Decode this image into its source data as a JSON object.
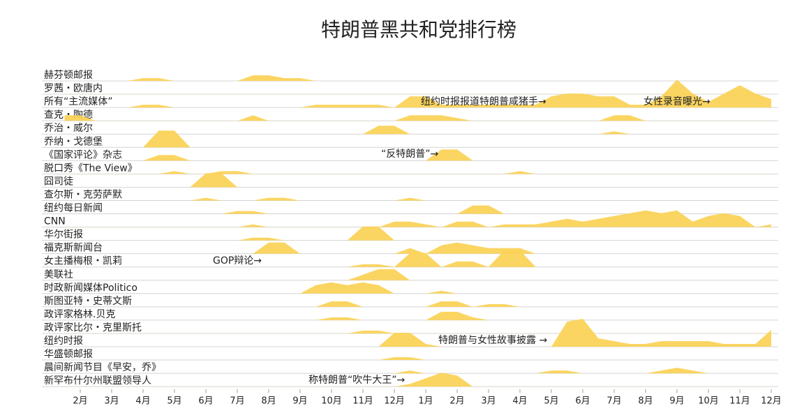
{
  "chart_data": {
    "type": "ridgeline",
    "title": "特朗普黑共和党排行榜",
    "color": "#fbd155",
    "grid": true,
    "xlim": [
      0.5,
      23.5
    ],
    "xticks": [
      {
        "value": 1,
        "label": "2月"
      },
      {
        "value": 2,
        "label": "3月"
      },
      {
        "value": 3,
        "label": "4月"
      },
      {
        "value": 4,
        "label": "5月"
      },
      {
        "value": 5,
        "label": "6月"
      },
      {
        "value": 6,
        "label": "7月"
      },
      {
        "value": 7,
        "label": "8月"
      },
      {
        "value": 8,
        "label": "9月"
      },
      {
        "value": 9,
        "label": "10月"
      },
      {
        "value": 10,
        "label": "11月"
      },
      {
        "value": 11,
        "label": "12月"
      },
      {
        "value": 12,
        "label": "1月"
      },
      {
        "value": 13,
        "label": "2月"
      },
      {
        "value": 14,
        "label": "3月"
      },
      {
        "value": 15,
        "label": "4月"
      },
      {
        "value": 16,
        "label": "5月"
      },
      {
        "value": 17,
        "label": "6月"
      },
      {
        "value": 18,
        "label": "7月"
      },
      {
        "value": 19,
        "label": "8月"
      },
      {
        "value": 20,
        "label": "9月"
      },
      {
        "value": 21,
        "label": "10月"
      },
      {
        "value": 22,
        "label": "11月"
      },
      {
        "value": 23,
        "label": "12月"
      }
    ],
    "x": [
      0.5,
      1,
      1.5,
      2,
      2.5,
      3,
      3.5,
      4,
      4.5,
      5,
      5.5,
      6,
      6.5,
      7,
      7.5,
      8,
      8.5,
      9,
      9.5,
      10,
      10.5,
      11,
      11.5,
      12,
      12.5,
      13,
      13.5,
      14,
      14.5,
      15,
      15.5,
      16,
      16.5,
      17,
      17.5,
      18,
      18.5,
      19,
      19.5,
      20,
      20.5,
      21,
      21.5,
      22,
      22.5,
      23
    ],
    "series": [
      {
        "name": "赫芬顿邮报",
        "values": [
          0,
          0,
          0,
          0,
          0,
          1,
          1,
          0,
          0,
          0,
          0,
          0,
          2,
          2,
          1,
          1,
          0,
          0,
          0,
          0,
          0,
          0,
          0,
          0,
          0,
          0,
          0,
          0,
          0,
          0,
          0,
          0,
          0,
          0,
          0,
          0,
          0,
          0,
          0,
          0,
          0,
          0,
          0,
          0,
          0,
          0
        ]
      },
      {
        "name": "罗茜・欧唐内",
        "values": [
          0,
          0,
          0,
          0,
          0,
          0,
          0,
          0,
          0,
          0,
          0,
          0,
          0,
          0,
          0,
          0,
          0,
          0,
          0,
          0,
          0,
          0,
          0,
          0,
          0,
          0,
          0,
          0,
          0,
          0,
          0,
          0,
          0,
          0,
          0,
          0,
          0,
          0,
          0,
          0,
          0,
          0,
          0,
          0,
          0,
          0
        ]
      },
      {
        "name": "所有“主流媒体”",
        "values": [
          0,
          0,
          0,
          0,
          0,
          1,
          1,
          0,
          0,
          0,
          0,
          0,
          0,
          0,
          0,
          0,
          1,
          1,
          1,
          1,
          1,
          0,
          4,
          4,
          1,
          1,
          1,
          1,
          1,
          1,
          1,
          4,
          5,
          5,
          4,
          4,
          1,
          1,
          4,
          10,
          5,
          2,
          5,
          8,
          5,
          3
        ]
      },
      {
        "name": "查克・陶德",
        "values": [
          2,
          2,
          0,
          0,
          0,
          0,
          0,
          0,
          0,
          0,
          0,
          0,
          2,
          0,
          0,
          0,
          0,
          0,
          0,
          0,
          0,
          0,
          2,
          2,
          2,
          1,
          0,
          0,
          0,
          0,
          0,
          0,
          0,
          0,
          0,
          2,
          2,
          0,
          0,
          0,
          0,
          0,
          0,
          0,
          0,
          0
        ]
      },
      {
        "name": "乔治・威尔",
        "values": [
          0,
          0,
          0,
          0,
          0,
          0,
          0,
          0,
          0,
          0,
          0,
          0,
          0,
          0,
          0,
          0,
          0,
          0,
          0,
          0,
          3,
          3,
          0,
          0,
          0,
          0,
          0,
          0,
          0,
          0,
          0,
          0,
          0,
          0,
          0,
          1,
          0,
          0,
          0,
          0,
          0,
          0,
          0,
          0,
          0,
          0
        ]
      },
      {
        "name": "乔纳・戈德堡",
        "values": [
          0,
          0,
          0,
          0,
          0,
          0,
          6,
          6,
          0,
          0,
          0,
          0,
          0,
          0,
          0,
          0,
          0,
          0,
          0,
          0,
          0,
          0,
          0,
          0,
          0,
          0,
          0,
          0,
          0,
          0,
          0,
          0,
          0,
          0,
          0,
          0,
          0,
          0,
          0,
          0,
          0,
          0,
          0,
          0,
          0,
          0
        ]
      },
      {
        "name": "《国家评论》杂志",
        "values": [
          0,
          0,
          0,
          0,
          0,
          0,
          2,
          2,
          0,
          0,
          0,
          0,
          0,
          0,
          0,
          0,
          0,
          0,
          0,
          0,
          0,
          0,
          0,
          0,
          4,
          4,
          0,
          0,
          0,
          0,
          0,
          0,
          0,
          0,
          0,
          0,
          0,
          0,
          0,
          0,
          0,
          0,
          0,
          0,
          0,
          0
        ]
      },
      {
        "name": "脱口秀《The View》",
        "values": [
          0,
          0,
          0,
          0,
          0,
          0,
          0,
          1,
          0,
          0,
          1,
          1,
          0,
          0,
          0,
          0,
          0,
          0,
          0,
          0,
          0,
          0,
          0,
          0,
          0,
          0,
          0,
          0,
          0,
          1,
          0,
          0,
          0,
          0,
          0,
          0,
          0,
          0,
          0,
          0,
          0,
          0,
          0,
          0,
          0,
          0
        ]
      },
      {
        "name": "囧司徒",
        "values": [
          0,
          0,
          0,
          0,
          0,
          0,
          0,
          0,
          0,
          5,
          5,
          0,
          0,
          0,
          0,
          0,
          0,
          0,
          0,
          0,
          0,
          0,
          0,
          0,
          0,
          0,
          0,
          0,
          0,
          0,
          0,
          0,
          0,
          0,
          0,
          0,
          0,
          0,
          0,
          0,
          0,
          0,
          0,
          0,
          0,
          0
        ]
      },
      {
        "name": "查尔斯・克劳萨默",
        "values": [
          0,
          0,
          0,
          0,
          0,
          0,
          0,
          0,
          0,
          1,
          0,
          0,
          0,
          1,
          1,
          0,
          0,
          0,
          0,
          0,
          0,
          0,
          1,
          0,
          0,
          0,
          0,
          0,
          0,
          0,
          0,
          0,
          0,
          0,
          0,
          0,
          0,
          0,
          0,
          0,
          0,
          0,
          0,
          0,
          0,
          0
        ]
      },
      {
        "name": "纽约每日新闻",
        "values": [
          0,
          0,
          0,
          0,
          0,
          0,
          0,
          0,
          0,
          0,
          0,
          1,
          1,
          0,
          0,
          0,
          0,
          0,
          0,
          0,
          0,
          0,
          0,
          0,
          0,
          0,
          3,
          3,
          0,
          0,
          0,
          0,
          0,
          0,
          0,
          0,
          0,
          0,
          0,
          0,
          0,
          0,
          0,
          0,
          0,
          0
        ]
      },
      {
        "name": "CNN",
        "values": [
          0,
          0,
          0,
          0,
          0,
          0,
          0,
          0,
          0,
          0,
          0,
          0,
          1,
          0,
          0,
          0,
          0,
          0,
          0,
          0,
          0,
          2,
          2,
          1,
          0,
          2,
          2,
          0,
          1,
          1,
          1,
          2,
          3,
          2,
          3,
          4,
          5,
          6,
          5,
          6,
          2,
          4,
          5,
          4,
          0,
          1
        ]
      },
      {
        "name": "华尔街报",
        "values": [
          0,
          0,
          0,
          0,
          0,
          0,
          0,
          0,
          0,
          0,
          0,
          0,
          1,
          1,
          0,
          0,
          0,
          0,
          0,
          5,
          5,
          0,
          0,
          0,
          0,
          0,
          0,
          0,
          0,
          0,
          0,
          0,
          0,
          0,
          0,
          0,
          0,
          0,
          0,
          0,
          0,
          0,
          0,
          0,
          0,
          0
        ]
      },
      {
        "name": "福克斯新闻台",
        "values": [
          0,
          0,
          0,
          0,
          0,
          0,
          0,
          0,
          0,
          0,
          0,
          0,
          0,
          4,
          4,
          0,
          0,
          0,
          0,
          0,
          0,
          0,
          2,
          0,
          3,
          4,
          3,
          2,
          2,
          2,
          0,
          0,
          0,
          0,
          0,
          0,
          0,
          0,
          0,
          0,
          0,
          0,
          0,
          0,
          0,
          0
        ]
      },
      {
        "name": "女主播梅根・凯莉",
        "values": [
          0,
          0,
          0,
          0,
          0,
          0,
          0,
          0,
          0,
          0,
          0,
          0,
          0,
          0,
          0,
          0,
          0,
          0,
          0,
          1,
          1,
          0,
          5,
          5,
          0,
          2,
          2,
          0,
          6,
          6,
          0,
          0,
          0,
          0,
          0,
          0,
          0,
          0,
          0,
          0,
          0,
          0,
          0,
          0,
          0,
          0
        ]
      },
      {
        "name": "美联社",
        "values": [
          0,
          0,
          0,
          0,
          0,
          0,
          0,
          0,
          0,
          0,
          0,
          0,
          0,
          0,
          0,
          0,
          0,
          0,
          0,
          2,
          4,
          4,
          0,
          0,
          0,
          0,
          0,
          0,
          0,
          0,
          0,
          0,
          0,
          0,
          0,
          0,
          0,
          0,
          0,
          0,
          0,
          0,
          0,
          0,
          0,
          0
        ]
      },
      {
        "name": "时政新闻媒体Politico",
        "values": [
          0,
          0,
          0,
          0,
          0,
          0,
          0,
          0,
          0,
          0,
          0,
          0,
          0,
          0,
          0,
          0,
          3,
          4,
          3,
          4,
          3,
          0,
          0,
          0,
          1,
          0,
          0,
          0,
          0,
          0,
          0,
          0,
          0,
          0,
          0,
          0,
          0,
          0,
          0,
          0,
          0,
          0,
          0,
          0,
          0,
          0
        ]
      },
      {
        "name": "斯图亚特・史蒂文斯",
        "values": [
          0,
          0,
          0,
          0,
          0,
          0,
          0,
          0,
          0,
          0,
          0,
          0,
          0,
          0,
          0,
          0,
          0,
          2,
          2,
          0,
          0,
          0,
          0,
          0,
          2,
          2,
          0,
          1,
          1,
          0,
          0,
          0,
          0,
          0,
          0,
          0,
          0,
          0,
          0,
          0,
          0,
          0,
          0,
          0,
          0,
          0
        ]
      },
      {
        "name": "政评家格林.贝克",
        "values": [
          0,
          0,
          0,
          0,
          0,
          0,
          0,
          0,
          0,
          0,
          0,
          0,
          0,
          0,
          0,
          0,
          0,
          1,
          1,
          0,
          0,
          0,
          0,
          0,
          3,
          3,
          1,
          0,
          0,
          0,
          0,
          0,
          0,
          0,
          0,
          0,
          0,
          0,
          0,
          0,
          0,
          0,
          0,
          0,
          0,
          0
        ]
      },
      {
        "name": "政评家比尔・克里斯托",
        "values": [
          0,
          0,
          0,
          0,
          0,
          0,
          0,
          0,
          0,
          0,
          0,
          0,
          0,
          0,
          0,
          0,
          0,
          0,
          0,
          1,
          1,
          0,
          0,
          0,
          0,
          0,
          0,
          0,
          0,
          0,
          0,
          0,
          0,
          0,
          0,
          0,
          0,
          0,
          0,
          0,
          0,
          0,
          0,
          0,
          0,
          0
        ]
      },
      {
        "name": "纽约时报",
        "values": [
          0,
          0,
          0,
          0,
          0,
          0,
          0,
          0,
          0,
          0,
          0,
          0,
          0,
          0,
          0,
          0,
          0,
          0,
          0,
          0,
          0,
          5,
          5,
          1,
          0,
          0,
          0,
          0,
          0,
          0,
          0,
          0,
          9,
          10,
          3,
          2,
          1,
          1,
          2,
          2,
          2,
          2,
          1,
          1,
          1,
          6
        ]
      },
      {
        "name": "华盛顿邮报",
        "values": [
          0,
          0,
          0,
          0,
          0,
          0,
          0,
          0,
          0,
          0,
          0,
          0,
          0,
          0,
          0,
          0,
          0,
          0,
          0,
          0,
          0,
          1,
          1,
          0,
          0,
          0,
          0,
          0,
          0,
          0,
          0,
          0,
          0,
          0,
          0,
          0,
          0,
          0,
          0,
          0,
          0,
          0,
          0,
          0,
          0,
          0
        ]
      },
      {
        "name": "晨间新闻节目《早安，乔》",
        "values": [
          0,
          0,
          0,
          0,
          0,
          0,
          0,
          0,
          0,
          0,
          0,
          0,
          0,
          0,
          0,
          0,
          0,
          0,
          0,
          0,
          0,
          0,
          1,
          0,
          0,
          0,
          0,
          0,
          0,
          0,
          0,
          1,
          1,
          0,
          0,
          0,
          0,
          0,
          1,
          2,
          1,
          0,
          0,
          0,
          0,
          0
        ]
      },
      {
        "name": "新罕布什尔州联盟领导人",
        "values": [
          0,
          0,
          0,
          0,
          0,
          0,
          0,
          0,
          0,
          0,
          0,
          0,
          0,
          0,
          0,
          0,
          0,
          0,
          0,
          0,
          0,
          0,
          1,
          3,
          5,
          4,
          0,
          0,
          0,
          0,
          0,
          0,
          0,
          0,
          0,
          0,
          0,
          0,
          0,
          0,
          0,
          0,
          0,
          0,
          0,
          0
        ]
      }
    ],
    "annotations": [
      "纽约时报报道特朗普咸猪手→",
      "女性录音曝光→",
      "“反特朗普”→",
      "GOP辩论→",
      "特朗普与女性故事披露 →",
      "称特朗普“吹牛大王”→"
    ]
  }
}
